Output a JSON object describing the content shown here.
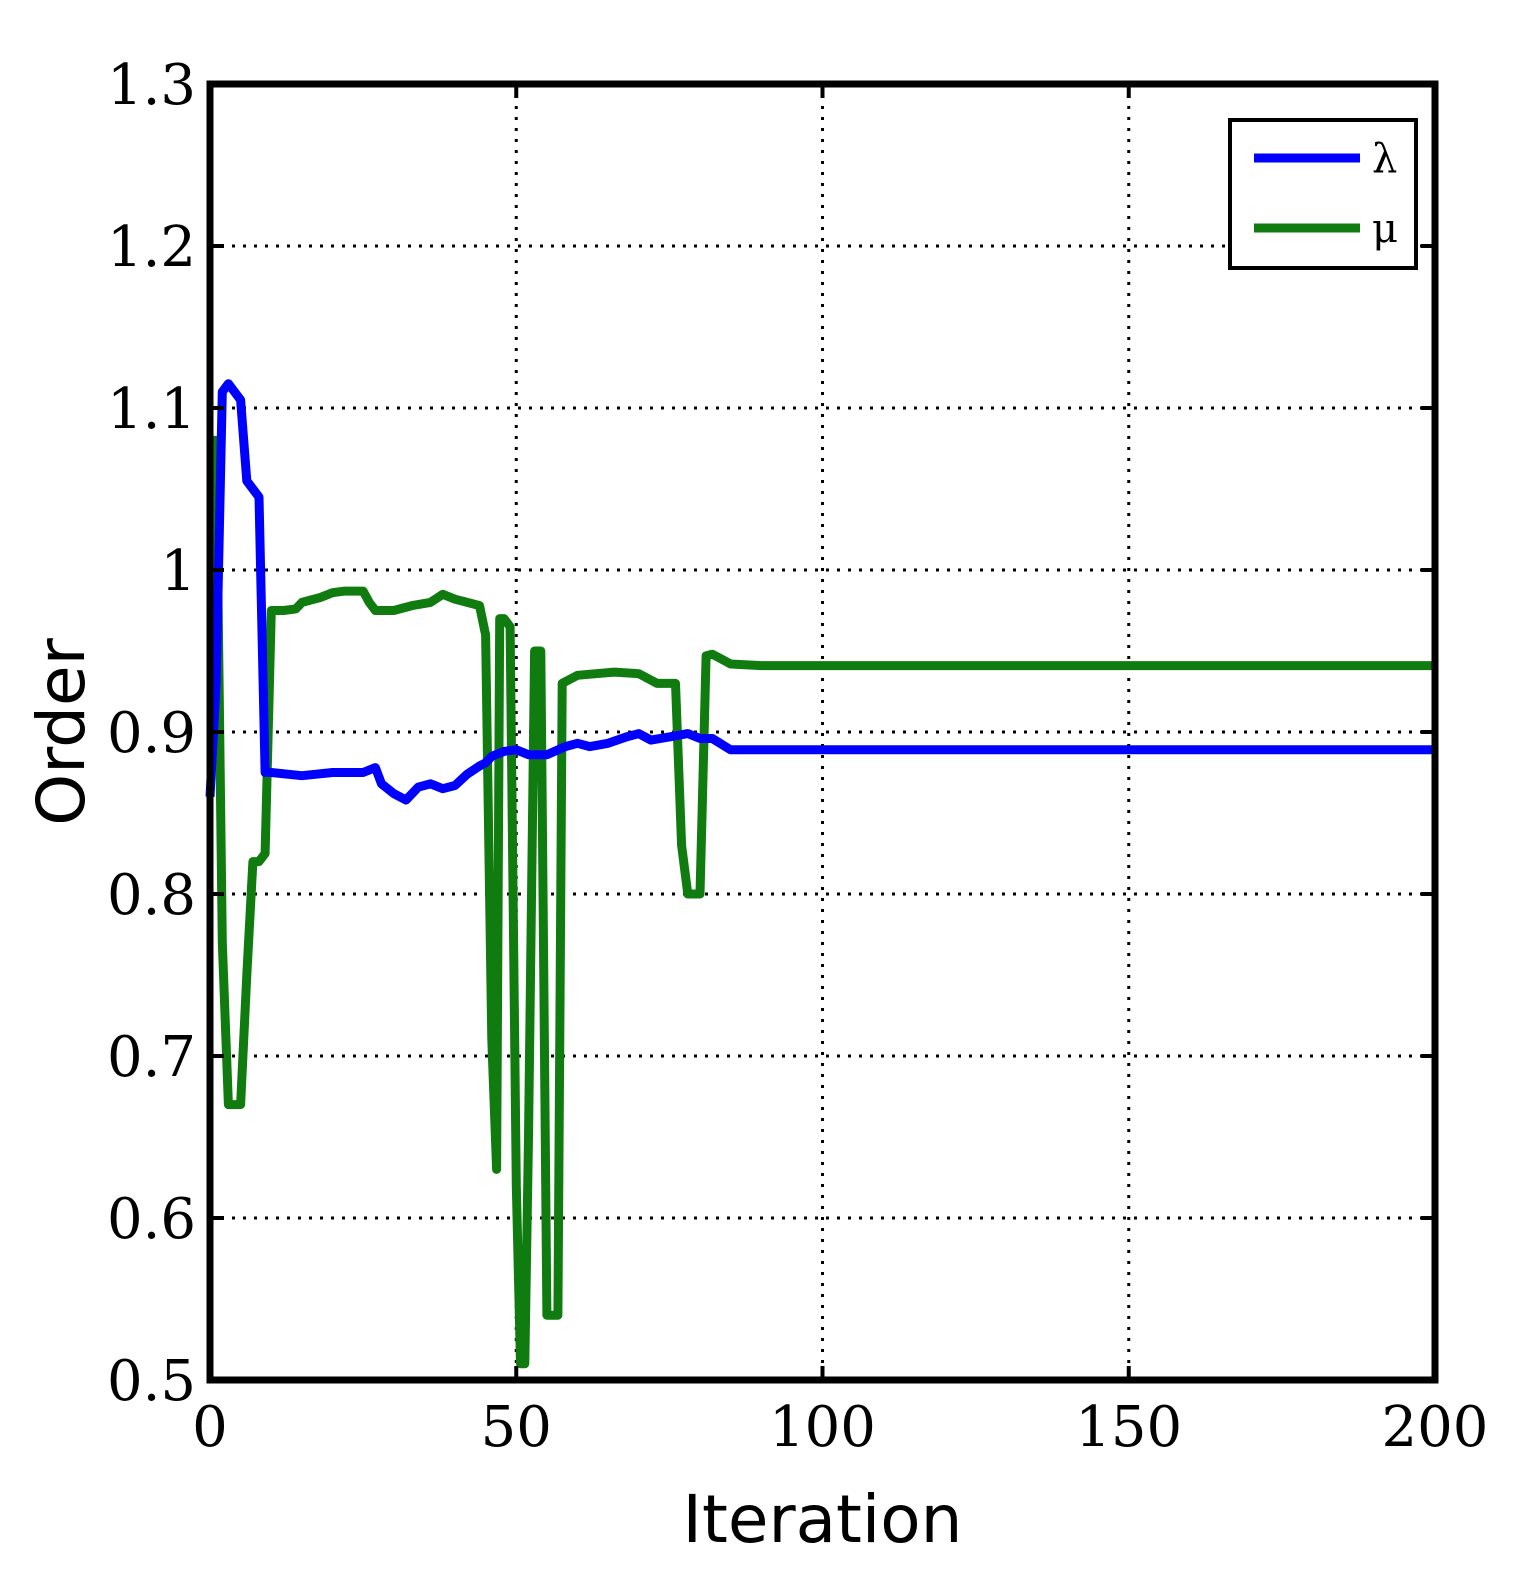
{
  "chart_data": {
    "type": "line",
    "xlabel": "Iteration",
    "ylabel": "Order",
    "xlim": [
      0,
      200
    ],
    "ylim": [
      0.5,
      1.3
    ],
    "xticks": [
      0,
      50,
      100,
      150,
      200
    ],
    "xtick_labels": [
      "0",
      "50",
      "100",
      "150",
      "200"
    ],
    "yticks": [
      0.5,
      0.6,
      0.7,
      0.8,
      0.9,
      1.0,
      1.1,
      1.2,
      1.3
    ],
    "ytick_labels": [
      "0.5",
      "0.6",
      "0.7",
      "0.8",
      "0.9",
      "1",
      "1.1",
      "1.2",
      "1.3"
    ],
    "grid": true,
    "legend_position": "top-right",
    "series": [
      {
        "name": "λ",
        "color": "#0000ff",
        "points": [
          [
            0,
            0.86
          ],
          [
            1,
            0.93
          ],
          [
            2,
            1.11
          ],
          [
            3,
            1.115
          ],
          [
            4,
            1.11
          ],
          [
            5,
            1.105
          ],
          [
            6,
            1.055
          ],
          [
            7,
            1.05
          ],
          [
            8,
            1.045
          ],
          [
            9,
            0.875
          ],
          [
            10,
            0.875
          ],
          [
            15,
            0.873
          ],
          [
            20,
            0.875
          ],
          [
            25,
            0.875
          ],
          [
            27,
            0.878
          ],
          [
            28,
            0.868
          ],
          [
            30,
            0.862
          ],
          [
            32,
            0.858
          ],
          [
            34,
            0.866
          ],
          [
            36,
            0.868
          ],
          [
            38,
            0.865
          ],
          [
            40,
            0.867
          ],
          [
            42,
            0.874
          ],
          [
            44,
            0.879
          ],
          [
            45,
            0.881
          ],
          [
            46,
            0.885
          ],
          [
            48,
            0.888
          ],
          [
            50,
            0.889
          ],
          [
            52,
            0.886
          ],
          [
            55,
            0.886
          ],
          [
            58,
            0.891
          ],
          [
            60,
            0.893
          ],
          [
            62,
            0.891
          ],
          [
            65,
            0.893
          ],
          [
            68,
            0.897
          ],
          [
            70,
            0.899
          ],
          [
            72,
            0.895
          ],
          [
            75,
            0.897
          ],
          [
            78,
            0.899
          ],
          [
            80,
            0.896
          ],
          [
            82,
            0.896
          ],
          [
            85,
            0.889
          ],
          [
            90,
            0.889
          ],
          [
            100,
            0.889
          ],
          [
            150,
            0.889
          ],
          [
            200,
            0.889
          ]
        ]
      },
      {
        "name": "μ",
        "color": "#107c10",
        "points": [
          [
            0,
            1.08
          ],
          [
            1,
            1.08
          ],
          [
            2,
            0.77
          ],
          [
            3,
            0.67
          ],
          [
            4,
            0.67
          ],
          [
            5,
            0.67
          ],
          [
            6,
            0.75
          ],
          [
            7,
            0.82
          ],
          [
            8,
            0.82
          ],
          [
            9,
            0.825
          ],
          [
            10,
            0.975
          ],
          [
            12,
            0.975
          ],
          [
            14,
            0.976
          ],
          [
            15,
            0.98
          ],
          [
            18,
            0.983
          ],
          [
            20,
            0.986
          ],
          [
            22,
            0.987
          ],
          [
            25,
            0.987
          ],
          [
            26,
            0.98
          ],
          [
            27,
            0.975
          ],
          [
            30,
            0.975
          ],
          [
            33,
            0.978
          ],
          [
            36,
            0.98
          ],
          [
            38,
            0.985
          ],
          [
            40,
            0.982
          ],
          [
            42,
            0.98
          ],
          [
            44,
            0.978
          ],
          [
            45,
            0.96
          ],
          [
            46,
            0.71
          ],
          [
            46.8,
            0.63
          ],
          [
            47.3,
            0.97
          ],
          [
            48,
            0.97
          ],
          [
            49,
            0.965
          ],
          [
            50,
            0.62
          ],
          [
            50.7,
            0.51
          ],
          [
            51.4,
            0.51
          ],
          [
            52,
            0.65
          ],
          [
            53,
            0.95
          ],
          [
            54,
            0.95
          ],
          [
            55,
            0.54
          ],
          [
            56,
            0.54
          ],
          [
            56.8,
            0.54
          ],
          [
            57.5,
            0.93
          ],
          [
            60,
            0.935
          ],
          [
            63,
            0.936
          ],
          [
            66,
            0.937
          ],
          [
            70,
            0.936
          ],
          [
            73,
            0.93
          ],
          [
            76,
            0.93
          ],
          [
            77,
            0.83
          ],
          [
            78,
            0.8
          ],
          [
            79,
            0.8
          ],
          [
            80,
            0.8
          ],
          [
            81,
            0.947
          ],
          [
            82,
            0.948
          ],
          [
            84,
            0.944
          ],
          [
            85,
            0.942
          ],
          [
            90,
            0.941
          ],
          [
            100,
            0.941
          ],
          [
            150,
            0.941
          ],
          [
            200,
            0.941
          ]
        ]
      }
    ]
  }
}
